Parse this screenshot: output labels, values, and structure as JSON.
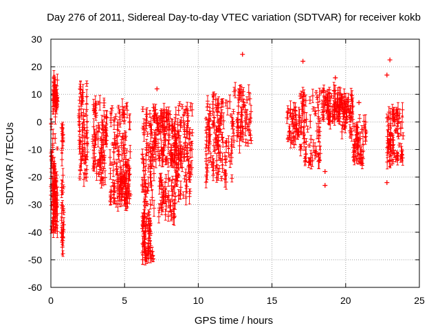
{
  "chart_data": {
    "type": "scatter",
    "title": "Day 276 of 2011, Sidereal Day-to-day VTEC variation (SDTVAR) for receiver kokb",
    "xlabel": "GPS time / hours",
    "ylabel": "SDTVAR / TECUs",
    "xlim": [
      0,
      25
    ],
    "ylim": [
      -60,
      30
    ],
    "x_ticks": [
      "0",
      "5",
      "10",
      "15",
      "20",
      "25"
    ],
    "y_ticks": [
      "30",
      "20",
      "10",
      "0",
      "-10",
      "-20",
      "-30",
      "-40",
      "-50",
      "-60"
    ],
    "grid": true,
    "marker": "plus with error bars",
    "color": "#ff0000",
    "clusters": [
      {
        "x0": 0.0,
        "x1": 0.45,
        "ylo": -41,
        "yhi": 15,
        "n": 70
      },
      {
        "x0": 0.05,
        "x1": 0.4,
        "ylo": -40,
        "yhi": -20,
        "n": 40
      },
      {
        "x0": 0.2,
        "x1": 0.45,
        "ylo": 5,
        "yhi": 17,
        "n": 25
      },
      {
        "x0": 0.7,
        "x1": 0.9,
        "ylo": -48,
        "yhi": 0,
        "n": 35
      },
      {
        "x0": 1.9,
        "x1": 2.5,
        "ylo": -22,
        "yhi": 14,
        "n": 60
      },
      {
        "x0": 2.8,
        "x1": 3.8,
        "ylo": -22,
        "yhi": 7,
        "n": 80
      },
      {
        "x0": 4.0,
        "x1": 5.4,
        "ylo": -30,
        "yhi": 6,
        "n": 110
      },
      {
        "x0": 4.6,
        "x1": 5.3,
        "ylo": -31,
        "yhi": -15,
        "n": 30
      },
      {
        "x0": 6.2,
        "x1": 7.0,
        "ylo": -51,
        "yhi": 6,
        "n": 100
      },
      {
        "x0": 6.2,
        "x1": 6.8,
        "ylo": -50,
        "yhi": -33,
        "n": 40
      },
      {
        "x0": 7.0,
        "x1": 8.5,
        "ylo": -15,
        "yhi": 5,
        "n": 110
      },
      {
        "x0": 7.3,
        "x1": 8.5,
        "ylo": -35,
        "yhi": -20,
        "n": 50
      },
      {
        "x0": 8.5,
        "x1": 9.6,
        "ylo": -28,
        "yhi": 8,
        "n": 90
      },
      {
        "x0": 10.5,
        "x1": 11.3,
        "ylo": -22,
        "yhi": 10,
        "n": 60
      },
      {
        "x0": 11.3,
        "x1": 12.3,
        "ylo": -22,
        "yhi": 8,
        "n": 60
      },
      {
        "x0": 12.3,
        "x1": 13.6,
        "ylo": -9,
        "yhi": 12,
        "n": 60
      },
      {
        "x0": 16.0,
        "x1": 16.9,
        "ylo": -9,
        "yhi": 5,
        "n": 40
      },
      {
        "x0": 16.9,
        "x1": 18.3,
        "ylo": -15,
        "yhi": 11,
        "n": 70
      },
      {
        "x0": 18.3,
        "x1": 19.7,
        "ylo": 0,
        "yhi": 12,
        "n": 80
      },
      {
        "x0": 19.7,
        "x1": 20.5,
        "ylo": -5,
        "yhi": 10,
        "n": 50
      },
      {
        "x0": 20.5,
        "x1": 21.4,
        "ylo": -15,
        "yhi": 3,
        "n": 50
      },
      {
        "x0": 22.8,
        "x1": 23.9,
        "ylo": -15,
        "yhi": 5,
        "n": 80
      }
    ],
    "outliers": [
      {
        "x": 13.0,
        "y": 24.5
      },
      {
        "x": 17.1,
        "y": 22
      },
      {
        "x": 23.0,
        "y": 22.5
      },
      {
        "x": 22.8,
        "y": 17
      },
      {
        "x": 19.3,
        "y": 16
      },
      {
        "x": 7.2,
        "y": 12
      },
      {
        "x": 20.9,
        "y": 7
      },
      {
        "x": 18.6,
        "y": -18
      },
      {
        "x": 18.6,
        "y": -23
      },
      {
        "x": 22.8,
        "y": -22
      }
    ]
  }
}
